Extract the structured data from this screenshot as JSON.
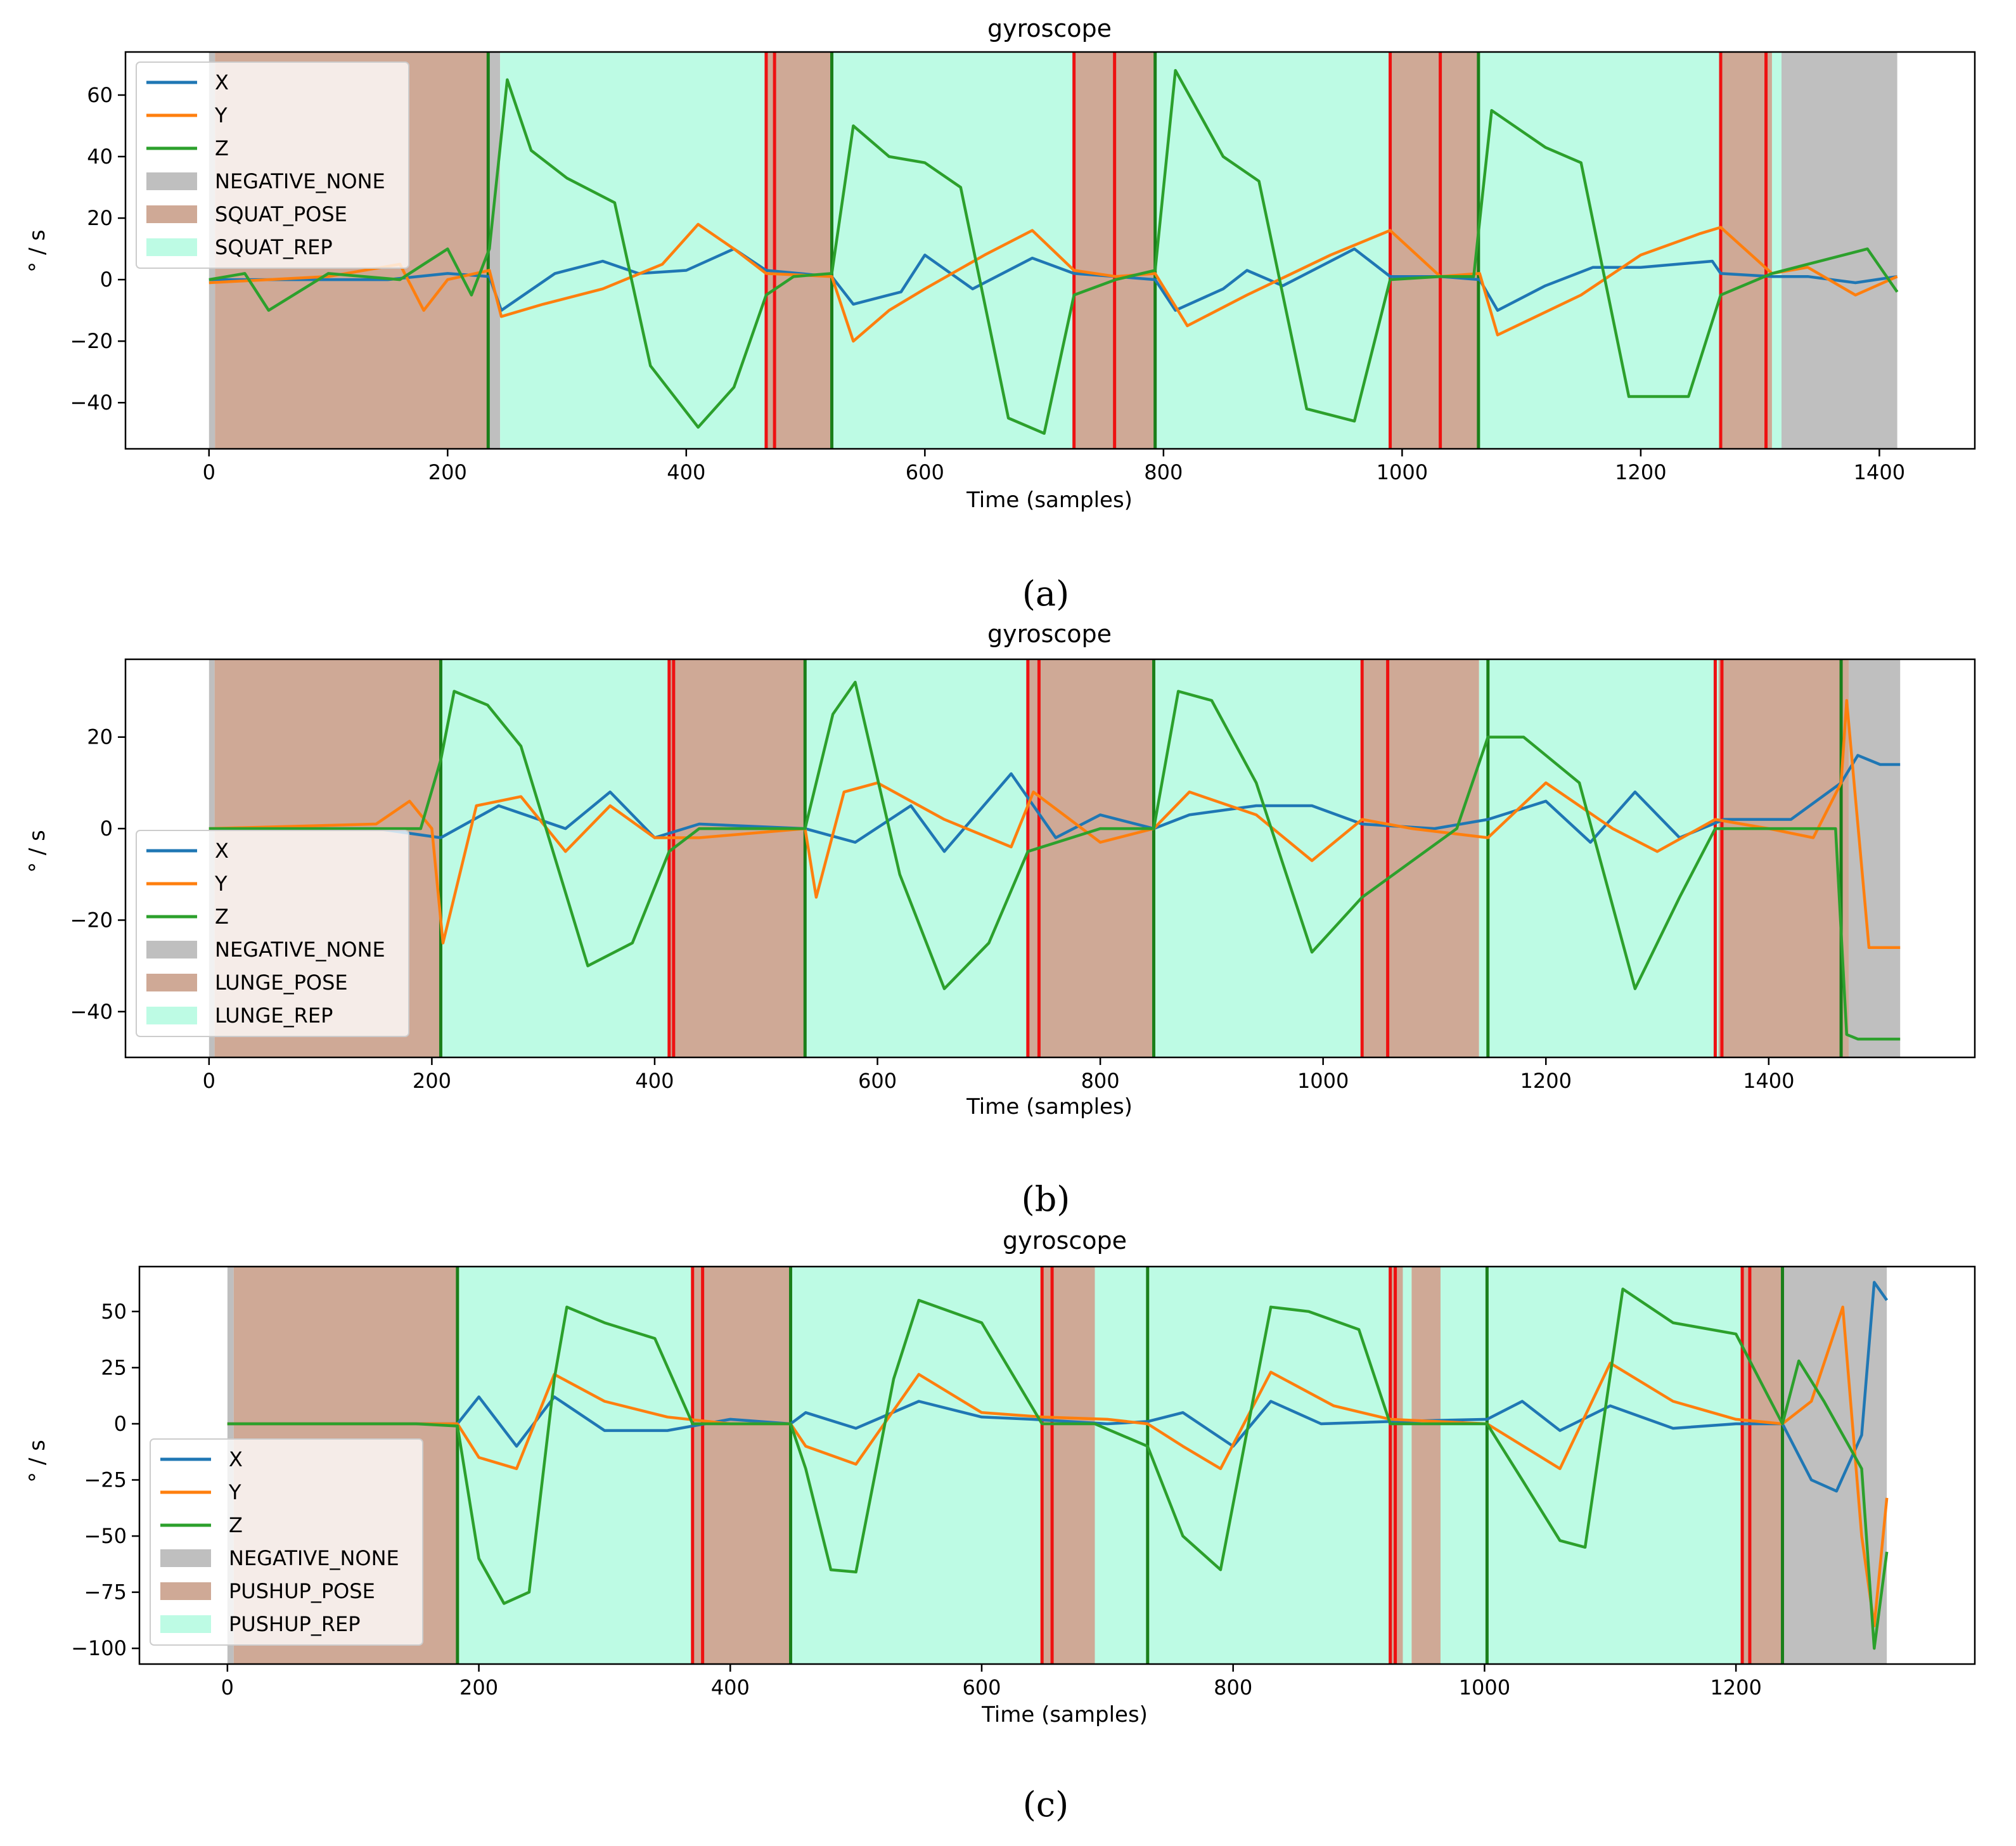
{
  "figure": {
    "captions": [
      "(a)",
      "(b)",
      "(c)"
    ]
  },
  "colors": {
    "X": "#1f77b4",
    "Y": "#ff7f0e",
    "Z": "#2ca02c",
    "NEGATIVE_NONE": "#bfbfbf",
    "POSE": "#cfa996",
    "REP": "#bdfbe4",
    "start_line": "#1a7f1a",
    "end_line": "#ee1111"
  },
  "chart_data": [
    {
      "type": "line",
      "title": "gyroscope",
      "xlabel": "Time (samples)",
      "ylabel": "° / s",
      "xlim": [
        -70,
        1480
      ],
      "ylim": [
        -55,
        74
      ],
      "xticks": [
        0,
        200,
        400,
        600,
        800,
        1000,
        1200,
        1400
      ],
      "yticks": [
        -40,
        -20,
        0,
        20,
        40,
        60
      ],
      "legend": {
        "position": "upper-left",
        "entries": [
          "X",
          "Y",
          "Z",
          "NEGATIVE_NONE",
          "SQUAT_POSE",
          "SQUAT_REP"
        ]
      },
      "regions": [
        {
          "label": "NEGATIVE_NONE",
          "start": 0,
          "end": 5
        },
        {
          "label": "SQUAT_POSE",
          "start": 5,
          "end": 235
        },
        {
          "label": "NEGATIVE_NONE",
          "start": 235,
          "end": 244
        },
        {
          "label": "SQUAT_REP",
          "start": 244,
          "end": 467
        },
        {
          "label": "SQUAT_POSE",
          "start": 467,
          "end": 522
        },
        {
          "label": "SQUAT_REP",
          "start": 522,
          "end": 725
        },
        {
          "label": "SQUAT_POSE",
          "start": 725,
          "end": 793
        },
        {
          "label": "SQUAT_REP",
          "start": 793,
          "end": 990
        },
        {
          "label": "SQUAT_POSE",
          "start": 990,
          "end": 1065
        },
        {
          "label": "SQUAT_REP",
          "start": 1065,
          "end": 1267
        },
        {
          "label": "SQUAT_POSE",
          "start": 1267,
          "end": 1310
        },
        {
          "label": "SQUAT_REP",
          "start": 1310,
          "end": 1318
        },
        {
          "label": "NEGATIVE_NONE",
          "start": 1318,
          "end": 1415
        }
      ],
      "rep_start_lines": [
        234,
        522,
        793,
        1064
      ],
      "rep_end_lines": [
        467,
        474,
        725,
        759,
        990,
        1032,
        1267,
        1305
      ],
      "series": [
        {
          "name": "X",
          "x": [
            0,
            150,
            200,
            235,
            245,
            290,
            330,
            360,
            400,
            440,
            467,
            522,
            540,
            580,
            600,
            640,
            690,
            725,
            760,
            793,
            810,
            850,
            870,
            900,
            960,
            990,
            1032,
            1065,
            1080,
            1120,
            1160,
            1200,
            1260,
            1267,
            1310,
            1340,
            1380,
            1415
          ],
          "y": [
            0,
            0,
            2,
            1,
            -10,
            2,
            6,
            2,
            3,
            10,
            3,
            1,
            -8,
            -4,
            8,
            -3,
            7,
            2,
            1,
            0,
            -10,
            -3,
            3,
            -2,
            10,
            1,
            1,
            0,
            -10,
            -2,
            4,
            4,
            6,
            2,
            1,
            1,
            -1,
            1
          ]
        },
        {
          "name": "Y",
          "x": [
            0,
            100,
            160,
            180,
            200,
            235,
            245,
            280,
            330,
            380,
            410,
            440,
            467,
            522,
            540,
            570,
            600,
            650,
            690,
            725,
            760,
            793,
            820,
            870,
            940,
            990,
            1032,
            1065,
            1080,
            1150,
            1200,
            1250,
            1267,
            1310,
            1340,
            1380,
            1415
          ],
          "y": [
            -1,
            1,
            5,
            -10,
            0,
            3,
            -12,
            -8,
            -3,
            5,
            18,
            10,
            2,
            1,
            -20,
            -10,
            -3,
            8,
            16,
            3,
            1,
            2,
            -15,
            -5,
            8,
            16,
            1,
            2,
            -18,
            -5,
            8,
            15,
            17,
            2,
            4,
            -5,
            1
          ]
        },
        {
          "name": "Z",
          "x": [
            0,
            30,
            50,
            100,
            160,
            180,
            200,
            220,
            235,
            250,
            270,
            300,
            340,
            370,
            410,
            440,
            467,
            490,
            522,
            540,
            570,
            600,
            630,
            670,
            700,
            725,
            760,
            793,
            810,
            850,
            880,
            920,
            960,
            990,
            1032,
            1060,
            1075,
            1120,
            1150,
            1190,
            1240,
            1267,
            1310,
            1340,
            1390,
            1415
          ],
          "y": [
            0,
            2,
            -10,
            2,
            0,
            5,
            10,
            -5,
            10,
            65,
            42,
            33,
            25,
            -28,
            -48,
            -35,
            -5,
            1,
            2,
            50,
            40,
            38,
            30,
            -45,
            -50,
            -5,
            0,
            3,
            68,
            40,
            32,
            -42,
            -46,
            0,
            1,
            1,
            55,
            43,
            38,
            -38,
            -38,
            -5,
            2,
            5,
            10,
            -4
          ]
        }
      ]
    },
    {
      "type": "line",
      "title": "gyroscope",
      "xlabel": "Time (samples)",
      "ylabel": "° / s",
      "xlim": [
        -75,
        1585
      ],
      "ylim": [
        -50,
        37
      ],
      "xticks": [
        0,
        200,
        400,
        600,
        800,
        1000,
        1200,
        1400
      ],
      "yticks": [
        -40,
        -20,
        0,
        20
      ],
      "legend": {
        "position": "center-left",
        "entries": [
          "X",
          "Y",
          "Z",
          "NEGATIVE_NONE",
          "LUNGE_POSE",
          "LUNGE_REP"
        ]
      },
      "regions": [
        {
          "label": "NEGATIVE_NONE",
          "start": 0,
          "end": 5
        },
        {
          "label": "LUNGE_POSE",
          "start": 5,
          "end": 208
        },
        {
          "label": "LUNGE_REP",
          "start": 208,
          "end": 413
        },
        {
          "label": "LUNGE_POSE",
          "start": 413,
          "end": 535
        },
        {
          "label": "LUNGE_REP",
          "start": 535,
          "end": 735
        },
        {
          "label": "LUNGE_POSE",
          "start": 735,
          "end": 848
        },
        {
          "label": "LUNGE_REP",
          "start": 848,
          "end": 1035
        },
        {
          "label": "LUNGE_POSE",
          "start": 1035,
          "end": 1140
        },
        {
          "label": "LUNGE_REP",
          "start": 1140,
          "end": 1355
        },
        {
          "label": "LUNGE_POSE",
          "start": 1355,
          "end": 1472
        },
        {
          "label": "NEGATIVE_NONE",
          "start": 1472,
          "end": 1518
        }
      ],
      "rep_start_lines": [
        208,
        535,
        848,
        1148,
        1465
      ],
      "rep_end_lines": [
        413,
        417,
        735,
        745,
        1035,
        1058,
        1352,
        1358
      ],
      "series": [
        {
          "name": "X",
          "x": [
            0,
            150,
            208,
            260,
            320,
            360,
            400,
            440,
            535,
            580,
            630,
            660,
            720,
            760,
            800,
            848,
            880,
            940,
            990,
            1035,
            1100,
            1148,
            1200,
            1240,
            1280,
            1320,
            1360,
            1420,
            1465,
            1480,
            1500,
            1518
          ],
          "y": [
            0,
            0,
            -2,
            5,
            0,
            8,
            -2,
            1,
            0,
            -3,
            5,
            -5,
            12,
            -2,
            3,
            0,
            3,
            5,
            5,
            1,
            0,
            2,
            6,
            -3,
            8,
            -2,
            2,
            2,
            10,
            16,
            14,
            14
          ]
        },
        {
          "name": "Y",
          "x": [
            0,
            150,
            180,
            200,
            210,
            240,
            280,
            320,
            360,
            400,
            440,
            535,
            545,
            570,
            600,
            660,
            720,
            740,
            800,
            848,
            880,
            940,
            990,
            1035,
            1080,
            1148,
            1200,
            1260,
            1300,
            1352,
            1400,
            1440,
            1465,
            1470,
            1490,
            1518
          ],
          "y": [
            0,
            1,
            6,
            0,
            -25,
            5,
            7,
            -5,
            5,
            -2,
            -2,
            0,
            -15,
            8,
            10,
            2,
            -4,
            8,
            -3,
            0,
            8,
            3,
            -7,
            2,
            0,
            -2,
            10,
            0,
            -5,
            2,
            0,
            -2,
            10,
            28,
            -26,
            -26
          ]
        },
        {
          "name": "Z",
          "x": [
            0,
            150,
            190,
            208,
            220,
            250,
            280,
            340,
            380,
            413,
            440,
            535,
            560,
            580,
            620,
            660,
            700,
            735,
            800,
            848,
            870,
            900,
            940,
            990,
            1035,
            1120,
            1148,
            1180,
            1230,
            1280,
            1320,
            1352,
            1460,
            1470,
            1480,
            1518
          ],
          "y": [
            0,
            0,
            0,
            15,
            30,
            27,
            18,
            -30,
            -25,
            -5,
            0,
            0,
            25,
            32,
            -10,
            -35,
            -25,
            -5,
            0,
            0,
            30,
            28,
            10,
            -27,
            -15,
            0,
            20,
            20,
            10,
            -35,
            -15,
            0,
            0,
            -45,
            -46,
            -46
          ]
        }
      ]
    },
    {
      "type": "line",
      "title": "gyroscope",
      "xlabel": "Time (samples)",
      "ylabel": "° / s",
      "xlim": [
        -70,
        1390
      ],
      "ylim": [
        -107,
        70
      ],
      "xticks": [
        0,
        200,
        400,
        600,
        800,
        1000,
        1200
      ],
      "yticks": [
        -100,
        -75,
        -50,
        -25,
        0,
        25,
        50
      ],
      "legend": {
        "position": "lower-left",
        "entries": [
          "X",
          "Y",
          "Z",
          "NEGATIVE_NONE",
          "PUSHUP_POSE",
          "PUSHUP_REP"
        ]
      },
      "regions": [
        {
          "label": "NEGATIVE_NONE",
          "start": 0,
          "end": 5
        },
        {
          "label": "PUSHUP_POSE",
          "start": 5,
          "end": 183
        },
        {
          "label": "PUSHUP_REP",
          "start": 183,
          "end": 370
        },
        {
          "label": "PUSHUP_POSE",
          "start": 370,
          "end": 448
        },
        {
          "label": "PUSHUP_REP",
          "start": 448,
          "end": 648
        },
        {
          "label": "PUSHUP_POSE",
          "start": 648,
          "end": 690
        },
        {
          "label": "PUSHUP_REP",
          "start": 690,
          "end": 925
        },
        {
          "label": "PUSHUP_POSE",
          "start": 925,
          "end": 935
        },
        {
          "label": "PUSHUP_REP",
          "start": 935,
          "end": 942
        },
        {
          "label": "PUSHUP_POSE",
          "start": 942,
          "end": 965
        },
        {
          "label": "PUSHUP_REP",
          "start": 965,
          "end": 1205
        },
        {
          "label": "PUSHUP_POSE",
          "start": 1205,
          "end": 1237
        },
        {
          "label": "NEGATIVE_NONE",
          "start": 1237,
          "end": 1320
        }
      ],
      "rep_start_lines": [
        183,
        448,
        732,
        1002,
        1237
      ],
      "rep_end_lines": [
        370,
        378,
        648,
        656,
        925,
        929,
        1205,
        1211
      ],
      "series": [
        {
          "name": "X",
          "x": [
            0,
            150,
            183,
            200,
            230,
            260,
            300,
            350,
            400,
            448,
            460,
            500,
            550,
            600,
            640,
            700,
            732,
            760,
            800,
            830,
            870,
            925,
            1002,
            1030,
            1060,
            1100,
            1150,
            1200,
            1237,
            1260,
            1280,
            1300,
            1310,
            1320
          ],
          "y": [
            0,
            0,
            0,
            12,
            -10,
            12,
            -3,
            -3,
            2,
            0,
            5,
            -2,
            10,
            3,
            2,
            0,
            1,
            5,
            -10,
            10,
            0,
            1,
            2,
            10,
            -3,
            8,
            -2,
            0,
            0,
            -25,
            -30,
            -5,
            63,
            55
          ]
        },
        {
          "name": "Y",
          "x": [
            0,
            150,
            183,
            200,
            230,
            260,
            300,
            350,
            400,
            448,
            460,
            500,
            550,
            600,
            648,
            700,
            732,
            760,
            790,
            830,
            880,
            925,
            1002,
            1060,
            1100,
            1150,
            1200,
            1237,
            1260,
            1285,
            1300,
            1310,
            1320
          ],
          "y": [
            0,
            0,
            0,
            -15,
            -20,
            22,
            10,
            3,
            0,
            0,
            -10,
            -18,
            22,
            5,
            3,
            2,
            0,
            -10,
            -20,
            23,
            8,
            2,
            0,
            -20,
            27,
            10,
            2,
            0,
            10,
            52,
            -50,
            -90,
            -33
          ]
        },
        {
          "name": "Z",
          "x": [
            0,
            150,
            183,
            200,
            220,
            240,
            260,
            270,
            300,
            340,
            370,
            448,
            460,
            480,
            500,
            530,
            550,
            600,
            648,
            690,
            732,
            760,
            790,
            830,
            860,
            900,
            925,
            1002,
            1030,
            1060,
            1080,
            1110,
            1150,
            1200,
            1237,
            1250,
            1270,
            1300,
            1310,
            1320
          ],
          "y": [
            0,
            0,
            -1,
            -60,
            -80,
            -75,
            20,
            52,
            45,
            38,
            0,
            0,
            -20,
            -65,
            -66,
            20,
            55,
            45,
            0,
            0,
            -10,
            -50,
            -65,
            52,
            50,
            42,
            0,
            0,
            -25,
            -52,
            -55,
            60,
            45,
            40,
            0,
            28,
            10,
            -20,
            -100,
            -57
          ]
        }
      ]
    }
  ]
}
